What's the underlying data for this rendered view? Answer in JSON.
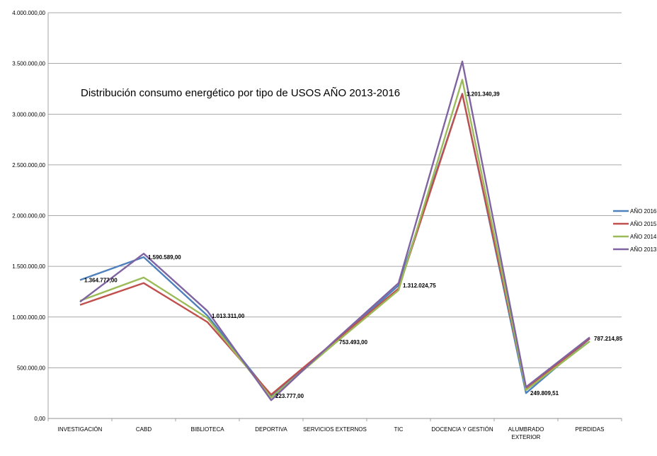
{
  "chart_data": {
    "type": "line",
    "title": "Distribución consumo energético por tipo de USOS AÑO 2013-2016",
    "categories": [
      [
        "INVESTIGACIÓN"
      ],
      [
        "CABD"
      ],
      [
        "BIBLIOTECA"
      ],
      [
        "DEPORTIVA"
      ],
      [
        "SERVICIOS EXTERNOS"
      ],
      [
        "TIC"
      ],
      [
        "DOCENCIA Y GESTIÓN"
      ],
      [
        "ALUMBRADO",
        "EXTERIOR"
      ],
      [
        "PERDIDAS"
      ]
    ],
    "ylim": [
      0,
      4000000
    ],
    "yticks": [
      "0,00",
      "500.000,00",
      "1.000.000,00",
      "1.500.000,00",
      "2.000.000,00",
      "2.500.000,00",
      "3.000.000,00",
      "3.500.000,00",
      "4.000.000,00"
    ],
    "grid": true,
    "legend_position": "right",
    "series": [
      {
        "name": "AÑO 2016",
        "color": "#4F81BD",
        "values": [
          1364777,
          1590589,
          1013311,
          223777,
          753493,
          1312024.75,
          3201340.39,
          249809.51,
          787214.85
        ]
      },
      {
        "name": "AÑO 2015",
        "color": "#C0504D",
        "values": [
          1120000,
          1335000,
          950000,
          235000,
          760000,
          1280000,
          3200000,
          290000,
          790000
        ]
      },
      {
        "name": "AÑO 2014",
        "color": "#9BBB59",
        "values": [
          1160000,
          1390000,
          990000,
          205000,
          740000,
          1265000,
          3340000,
          280000,
          760000
        ]
      },
      {
        "name": "AÑO 2013",
        "color": "#8064A2",
        "values": [
          1150000,
          1625000,
          1060000,
          180000,
          770000,
          1335000,
          3520000,
          310000,
          800000
        ]
      }
    ],
    "data_labels": [
      {
        "series": "AÑO 2016",
        "index": 0,
        "text": "1.364.777,00"
      },
      {
        "series": "AÑO 2016",
        "index": 1,
        "text": "1.590.589,00"
      },
      {
        "series": "AÑO 2016",
        "index": 2,
        "text": "1.013.311,00"
      },
      {
        "series": "AÑO 2016",
        "index": 3,
        "text": "223.777,00"
      },
      {
        "series": "AÑO 2016",
        "index": 4,
        "text": "753.493,00"
      },
      {
        "series": "AÑO 2016",
        "index": 5,
        "text": "1.312.024,75"
      },
      {
        "series": "AÑO 2016",
        "index": 6,
        "text": "3.201.340,39"
      },
      {
        "series": "AÑO 2016",
        "index": 7,
        "text": "249.809,51"
      },
      {
        "series": "AÑO 2016",
        "index": 8,
        "text": "787.214,85"
      }
    ]
  }
}
